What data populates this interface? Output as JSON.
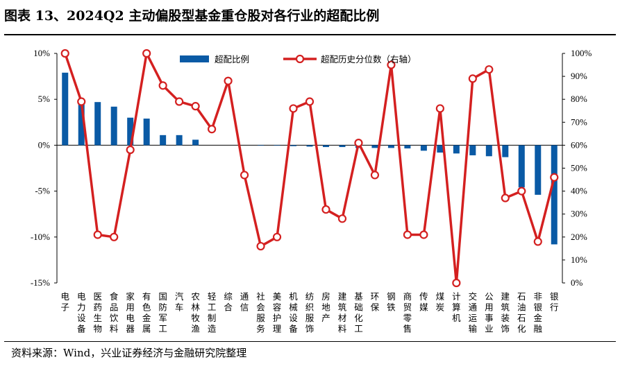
{
  "title": "图表 13、2024Q2 主动偏股型基金重仓股对各行业的超配比例",
  "source": "资料来源：Wind，兴业证券经济与金融研究院整理",
  "chart_data": {
    "type": "bar+line",
    "categories": [
      "电子",
      "电力设备",
      "医药生物",
      "食品饮料",
      "家用电器",
      "有色金属",
      "国防军工",
      "汽车",
      "农林牧渔",
      "轻工制造",
      "综合",
      "通信",
      "社会服务",
      "美容护理",
      "机械设备",
      "纺织服饰",
      "房地产",
      "建筑材料",
      "基础化工",
      "环保",
      "钢铁",
      "商贸零售",
      "传媒",
      "煤炭",
      "计算机",
      "交通运输",
      "公用事业",
      "建筑装饰",
      "石油石化",
      "非银金融",
      "银行"
    ],
    "series": [
      {
        "name": "超配比例",
        "axis": "left",
        "type": "bar",
        "color": "#0a5aa5",
        "values": [
          7.9,
          4.6,
          4.7,
          4.2,
          3.0,
          2.9,
          1.1,
          1.1,
          0.6,
          0.0,
          0.0,
          0.0,
          -0.05,
          -0.05,
          -0.1,
          -0.15,
          -0.2,
          -0.2,
          -0.3,
          -0.3,
          -0.3,
          -0.35,
          -0.6,
          -0.8,
          -0.9,
          -1.1,
          -1.2,
          -1.3,
          -4.6,
          -5.4,
          -10.8
        ]
      },
      {
        "name": "超配历史分位数（右轴）",
        "axis": "right",
        "type": "line",
        "color": "#d42020",
        "values": [
          100,
          79,
          21,
          20,
          58,
          100,
          86,
          79,
          77,
          67,
          88,
          47,
          16,
          20,
          76,
          79,
          32,
          28,
          61,
          47,
          95,
          21,
          21,
          76,
          0,
          89,
          93,
          37,
          40,
          18,
          46
        ]
      }
    ],
    "y_left": {
      "min": -15,
      "max": 10,
      "ticks": [
        "10%",
        "5%",
        "0%",
        "-5%",
        "-10%",
        "-15%"
      ]
    },
    "y_right": {
      "min": 0,
      "max": 100,
      "ticks": [
        "100%",
        "90%",
        "80%",
        "70%",
        "60%",
        "50%",
        "40%",
        "30%",
        "20%",
        "10%",
        "0%"
      ]
    },
    "legend_position": "top"
  }
}
